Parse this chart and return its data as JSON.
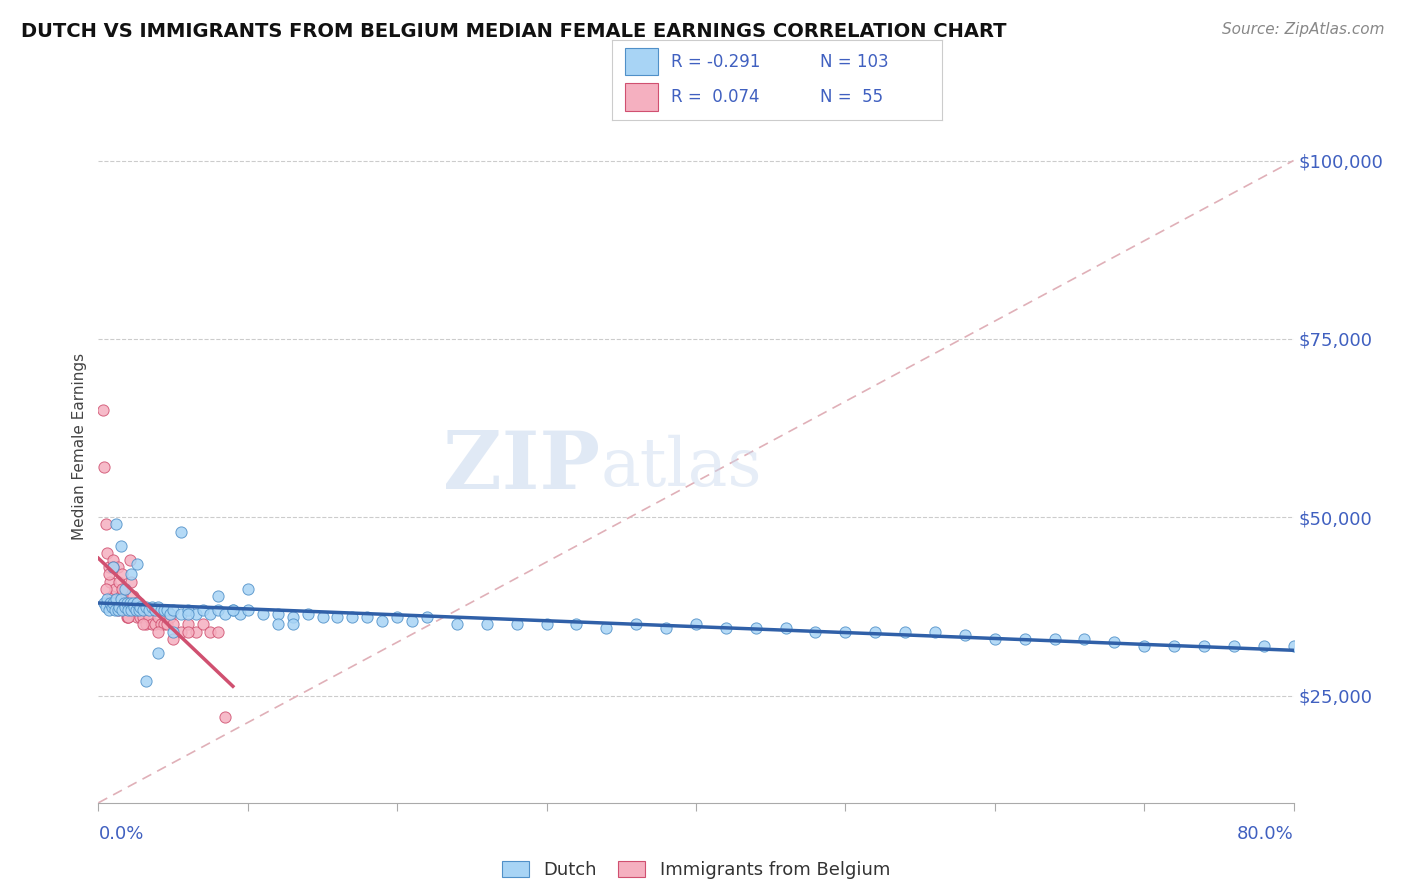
{
  "title": "DUTCH VS IMMIGRANTS FROM BELGIUM MEDIAN FEMALE EARNINGS CORRELATION CHART",
  "source": "Source: ZipAtlas.com",
  "ylabel": "Median Female Earnings",
  "y_tick_labels": [
    "$25,000",
    "$50,000",
    "$75,000",
    "$100,000"
  ],
  "y_tick_values": [
    25000,
    50000,
    75000,
    100000
  ],
  "x_min": 0.0,
  "x_max": 0.8,
  "y_min": 10000,
  "y_max": 110000,
  "dutch_color": "#a8d4f5",
  "dutch_edge_color": "#5090c8",
  "belgium_color": "#f5b0c0",
  "belgium_edge_color": "#d05070",
  "dutch_line_color": "#3060a8",
  "belgium_line_color": "#d05070",
  "ref_line_color": "#e0b0b8",
  "axis_label_color": "#4060c0",
  "watermark_text": "ZIPatlas",
  "legend_r1": "R = -0.291",
  "legend_n1": "N = 103",
  "legend_r2": "R =  0.074",
  "legend_n2": "N =  55",
  "dutch_x": [
    0.004,
    0.005,
    0.006,
    0.007,
    0.008,
    0.009,
    0.01,
    0.011,
    0.012,
    0.013,
    0.014,
    0.015,
    0.016,
    0.017,
    0.018,
    0.019,
    0.02,
    0.021,
    0.022,
    0.023,
    0.024,
    0.025,
    0.026,
    0.027,
    0.028,
    0.03,
    0.032,
    0.034,
    0.036,
    0.038,
    0.04,
    0.042,
    0.044,
    0.046,
    0.048,
    0.05,
    0.055,
    0.06,
    0.065,
    0.07,
    0.075,
    0.08,
    0.085,
    0.09,
    0.095,
    0.1,
    0.11,
    0.12,
    0.13,
    0.14,
    0.15,
    0.16,
    0.17,
    0.18,
    0.19,
    0.2,
    0.21,
    0.22,
    0.24,
    0.26,
    0.28,
    0.3,
    0.32,
    0.34,
    0.36,
    0.38,
    0.4,
    0.42,
    0.44,
    0.46,
    0.48,
    0.5,
    0.52,
    0.54,
    0.56,
    0.58,
    0.6,
    0.62,
    0.64,
    0.66,
    0.68,
    0.7,
    0.72,
    0.74,
    0.76,
    0.78,
    0.8,
    0.01,
    0.012,
    0.015,
    0.018,
    0.022,
    0.026,
    0.032,
    0.04,
    0.05,
    0.06,
    0.08,
    0.1,
    0.13,
    0.055,
    0.09,
    0.12
  ],
  "dutch_y": [
    38000,
    37500,
    38500,
    37000,
    38000,
    37500,
    38000,
    37000,
    38500,
    37000,
    37500,
    38500,
    37000,
    38000,
    37500,
    38000,
    37000,
    38000,
    37000,
    38000,
    37500,
    37000,
    38000,
    37000,
    37500,
    37000,
    37500,
    37000,
    37500,
    37000,
    37500,
    37000,
    37000,
    37000,
    36500,
    37000,
    36500,
    37000,
    36500,
    37000,
    36500,
    37000,
    36500,
    37000,
    36500,
    37000,
    36500,
    36500,
    36000,
    36500,
    36000,
    36000,
    36000,
    36000,
    35500,
    36000,
    35500,
    36000,
    35000,
    35000,
    35000,
    35000,
    35000,
    34500,
    35000,
    34500,
    35000,
    34500,
    34500,
    34500,
    34000,
    34000,
    34000,
    34000,
    34000,
    33500,
    33000,
    33000,
    33000,
    33000,
    32500,
    32000,
    32000,
    32000,
    32000,
    32000,
    32000,
    43000,
    49000,
    46000,
    40000,
    42000,
    43500,
    27000,
    31000,
    34000,
    36500,
    39000,
    40000,
    35000,
    48000,
    37000,
    35000
  ],
  "belgium_x": [
    0.003,
    0.004,
    0.005,
    0.006,
    0.007,
    0.008,
    0.009,
    0.01,
    0.011,
    0.012,
    0.013,
    0.014,
    0.015,
    0.016,
    0.017,
    0.018,
    0.019,
    0.02,
    0.021,
    0.022,
    0.023,
    0.024,
    0.025,
    0.026,
    0.027,
    0.028,
    0.03,
    0.032,
    0.034,
    0.036,
    0.038,
    0.04,
    0.042,
    0.044,
    0.046,
    0.048,
    0.05,
    0.055,
    0.06,
    0.065,
    0.07,
    0.075,
    0.08,
    0.085,
    0.005,
    0.007,
    0.01,
    0.013,
    0.016,
    0.02,
    0.025,
    0.03,
    0.04,
    0.05,
    0.06
  ],
  "belgium_y": [
    65000,
    57000,
    49000,
    45000,
    43000,
    41000,
    39000,
    44000,
    40000,
    38000,
    43000,
    41000,
    39000,
    42000,
    40000,
    38000,
    36000,
    36000,
    44000,
    41000,
    39000,
    37000,
    38000,
    36000,
    38000,
    36000,
    36000,
    35000,
    36000,
    35000,
    35000,
    36000,
    35000,
    35000,
    35000,
    36000,
    35000,
    34000,
    35000,
    34000,
    35000,
    34000,
    34000,
    22000,
    40000,
    42000,
    43000,
    37000,
    40000,
    36000,
    38000,
    35000,
    34000,
    33000,
    34000
  ],
  "ref_line_x": [
    0.0,
    0.8
  ],
  "ref_line_y": [
    10000,
    100000
  ]
}
